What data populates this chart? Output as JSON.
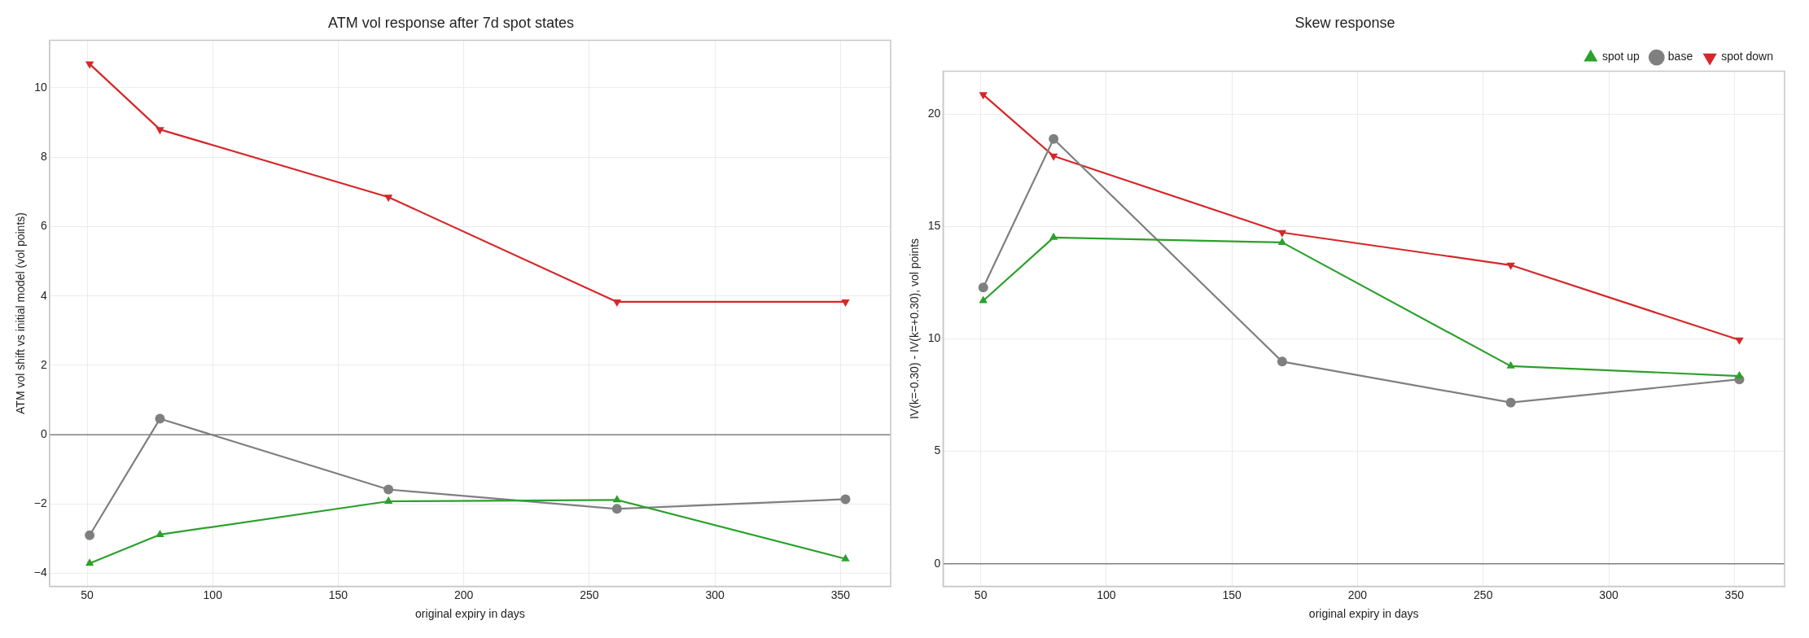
{
  "chart_data": [
    {
      "type": "line",
      "title": "ATM vol response after 7d spot states",
      "xlabel": "original expiry in days",
      "ylabel": "ATM vol shift vs initial model (vol points)",
      "x": [
        51,
        79,
        170,
        261,
        352
      ],
      "xlim": [
        35,
        370
      ],
      "xticks": [
        50,
        100,
        150,
        200,
        250,
        300,
        350
      ],
      "ylim": [
        -4.37,
        11.37
      ],
      "yticks": [
        -4,
        -2,
        0,
        2,
        4,
        6,
        8,
        10
      ],
      "grid": true,
      "legend": false,
      "ref_lines": [
        {
          "axis": "y",
          "value": 0,
          "color": "#808080"
        }
      ],
      "series": [
        {
          "color": "#d62728",
          "marker": "triangle_down",
          "values": [
            10.69,
            8.8,
            6.85,
            3.83,
            3.83
          ]
        },
        {
          "color": "#7f7f7f",
          "marker": "circle",
          "values": [
            -2.9,
            0.46,
            -1.58,
            -2.14,
            -1.86
          ]
        },
        {
          "color": "#2ca02c",
          "marker": "triangle",
          "values": [
            -3.71,
            -2.88,
            -1.92,
            -1.88,
            -3.58
          ]
        }
      ]
    },
    {
      "type": "line",
      "title": "Skew response",
      "xlabel": "original expiry in days",
      "ylabel": "IV(k=-0.30) - IV(k=+0.30), vol points",
      "x": [
        51,
        79,
        170,
        261,
        352
      ],
      "xlim": [
        35,
        370
      ],
      "xticks": [
        50,
        100,
        150,
        200,
        250,
        300,
        350
      ],
      "ylim": [
        -1,
        21.9
      ],
      "yticks": [
        0,
        5,
        10,
        15,
        20
      ],
      "grid": true,
      "legend": "top right",
      "ref_lines": [
        {
          "axis": "y",
          "value": 0,
          "color": "#808080"
        }
      ],
      "series": [
        {
          "name": "spot down",
          "color": "#d62728",
          "marker": "triangle_down",
          "values": [
            20.86,
            18.13,
            14.73,
            13.28,
            9.95
          ]
        },
        {
          "name": "base",
          "color": "#7f7f7f",
          "marker": "circle",
          "values": [
            12.29,
            18.89,
            8.99,
            7.17,
            8.2
          ]
        },
        {
          "name": "spot up",
          "color": "#2ca02c",
          "marker": "triangle",
          "values": [
            11.7,
            14.51,
            14.29,
            8.79,
            8.35
          ]
        }
      ]
    }
  ]
}
